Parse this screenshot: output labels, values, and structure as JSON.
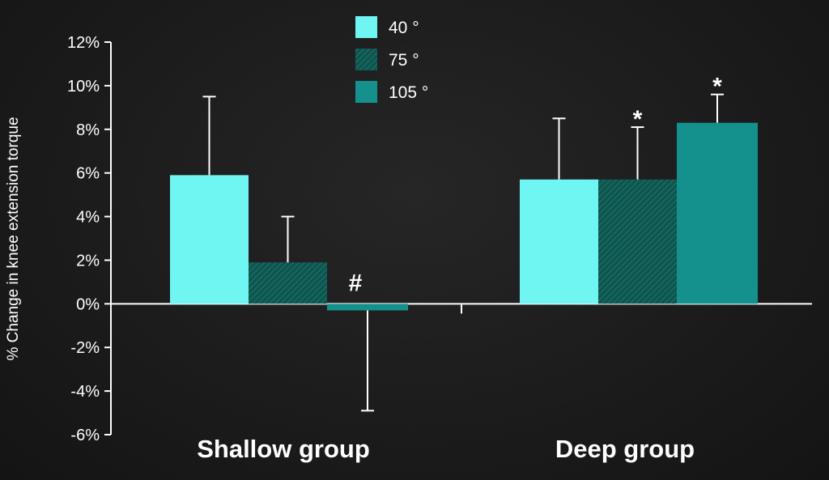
{
  "chart_data": {
    "type": "bar",
    "title": "",
    "xlabel": "",
    "ylabel": "% Change in knee extension torque",
    "ylim": [
      -6,
      12
    ],
    "yticks": [
      12,
      10,
      8,
      6,
      4,
      2,
      0,
      -2,
      -4,
      -6
    ],
    "ytick_labels": [
      "12%",
      "10%",
      "8%",
      "6%",
      "4%",
      "2%",
      "0%",
      "-2%",
      "-4%",
      "-6%"
    ],
    "categories": [
      "Shallow group",
      "Deep group"
    ],
    "series": [
      {
        "name": "40 °",
        "values": [
          5.9,
          5.7
        ],
        "errors": [
          3.6,
          2.8
        ],
        "color": "#6ff5f2",
        "pattern": "solid"
      },
      {
        "name": "75 °",
        "values": [
          1.9,
          5.7
        ],
        "errors": [
          2.1,
          2.4
        ],
        "color": "#0d5650",
        "pattern": "hatched"
      },
      {
        "name": "105 °",
        "values": [
          -0.3,
          8.3
        ],
        "errors": [
          4.6,
          1.3
        ],
        "color": "#15918d",
        "pattern": "solid"
      }
    ],
    "annotations": [
      {
        "text": "#",
        "category": "Shallow group",
        "series": "105 °"
      },
      {
        "text": "*",
        "category": "Deep group",
        "series": "75 °"
      },
      {
        "text": "*",
        "category": "Deep group",
        "series": "105 °"
      }
    ],
    "legend_position": "top-center",
    "grid": false
  }
}
